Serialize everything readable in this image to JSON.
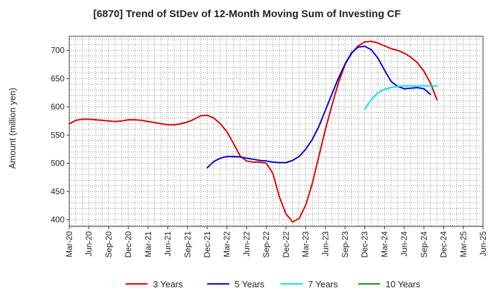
{
  "chart_data": {
    "type": "line",
    "title": "[6870]  Trend of StDev of 12-Month Moving Sum of Investing CF",
    "xlabel": "",
    "ylabel": "Amount (million yen)",
    "ylim": [
      388,
      725
    ],
    "yticks": [
      400,
      450,
      500,
      550,
      600,
      650,
      700
    ],
    "grid": true,
    "legend_position": "bottom",
    "x_tick_labels": [
      "Mar-20",
      "Jun-20",
      "Sep-20",
      "Dec-20",
      "Mar-21",
      "Jun-21",
      "Sep-21",
      "Dec-21",
      "Mar-22",
      "Jun-22",
      "Sep-22",
      "Dec-22",
      "Mar-23",
      "Jun-23",
      "Sep-23",
      "Dec-23",
      "Mar-24",
      "Jun-24",
      "Sep-24",
      "Dec-24",
      "Mar-25",
      "Jun-25"
    ],
    "x_start": "Mar-20",
    "series": [
      {
        "name": "3 Years",
        "color": "#dd0000",
        "points": [
          [
            "Mar-20",
            570
          ],
          [
            "Apr-20",
            576
          ],
          [
            "May-20",
            578
          ],
          [
            "Jun-20",
            578
          ],
          [
            "Jul-20",
            577
          ],
          [
            "Aug-20",
            576
          ],
          [
            "Sep-20",
            575
          ],
          [
            "Oct-20",
            574
          ],
          [
            "Nov-20",
            575
          ],
          [
            "Dec-20",
            577
          ],
          [
            "Jan-21",
            577
          ],
          [
            "Feb-21",
            576
          ],
          [
            "Mar-21",
            574
          ],
          [
            "Apr-21",
            572
          ],
          [
            "May-21",
            570
          ],
          [
            "Jun-21",
            568
          ],
          [
            "Jul-21",
            568
          ],
          [
            "Aug-21",
            570
          ],
          [
            "Sep-21",
            573
          ],
          [
            "Oct-21",
            578
          ],
          [
            "Nov-21",
            584
          ],
          [
            "Dec-21",
            585
          ],
          [
            "Jan-22",
            580
          ],
          [
            "Feb-22",
            570
          ],
          [
            "Mar-22",
            556
          ],
          [
            "Apr-22",
            535
          ],
          [
            "May-22",
            513
          ],
          [
            "Jun-22",
            504
          ],
          [
            "Jul-22",
            502
          ],
          [
            "Aug-22",
            502
          ],
          [
            "Sep-22",
            500
          ],
          [
            "Oct-22",
            482
          ],
          [
            "Nov-22",
            440
          ],
          [
            "Dec-22",
            410
          ],
          [
            "Jan-23",
            396
          ],
          [
            "Feb-23",
            402
          ],
          [
            "Mar-23",
            426
          ],
          [
            "Apr-23",
            464
          ],
          [
            "May-23",
            512
          ],
          [
            "Jun-23",
            560
          ],
          [
            "Jul-23",
            603
          ],
          [
            "Aug-23",
            643
          ],
          [
            "Sep-23",
            675
          ],
          [
            "Oct-23",
            695
          ],
          [
            "Nov-23",
            708
          ],
          [
            "Dec-23",
            715
          ],
          [
            "Jan-24",
            716
          ],
          [
            "Feb-24",
            713
          ],
          [
            "Mar-24",
            708
          ],
          [
            "Apr-24",
            703
          ],
          [
            "May-24",
            700
          ],
          [
            "Jun-24",
            695
          ],
          [
            "Jul-24",
            688
          ],
          [
            "Aug-24",
            678
          ],
          [
            "Sep-24",
            663
          ],
          [
            "Oct-24",
            642
          ],
          [
            "Nov-24",
            612
          ]
        ]
      },
      {
        "name": "5 Years",
        "color": "#0000cc",
        "points": [
          [
            "Dec-21",
            492
          ],
          [
            "Jan-22",
            503
          ],
          [
            "Feb-22",
            509
          ],
          [
            "Mar-22",
            512
          ],
          [
            "Apr-22",
            512
          ],
          [
            "May-22",
            511
          ],
          [
            "Jun-22",
            509
          ],
          [
            "Jul-22",
            507
          ],
          [
            "Aug-22",
            505
          ],
          [
            "Sep-22",
            504
          ],
          [
            "Oct-22",
            502
          ],
          [
            "Nov-22",
            501
          ],
          [
            "Dec-22",
            501
          ],
          [
            "Jan-23",
            505
          ],
          [
            "Feb-23",
            512
          ],
          [
            "Mar-23",
            525
          ],
          [
            "Apr-23",
            542
          ],
          [
            "May-23",
            565
          ],
          [
            "Jun-23",
            594
          ],
          [
            "Jul-23",
            623
          ],
          [
            "Aug-23",
            651
          ],
          [
            "Sep-23",
            676
          ],
          [
            "Oct-23",
            696
          ],
          [
            "Nov-23",
            706
          ],
          [
            "Dec-23",
            707
          ],
          [
            "Jan-24",
            701
          ],
          [
            "Feb-24",
            686
          ],
          [
            "Mar-24",
            665
          ],
          [
            "Apr-24",
            645
          ],
          [
            "May-24",
            636
          ],
          [
            "Jun-24",
            632
          ],
          [
            "Jul-24",
            633
          ],
          [
            "Aug-24",
            634
          ],
          [
            "Sep-24",
            632
          ],
          [
            "Oct-24",
            622
          ]
        ]
      },
      {
        "name": "7 Years",
        "color": "#00e5e5",
        "points": [
          [
            "Dec-23",
            596
          ],
          [
            "Jan-24",
            613
          ],
          [
            "Feb-24",
            625
          ],
          [
            "Mar-24",
            631
          ],
          [
            "Apr-24",
            634
          ],
          [
            "May-24",
            636
          ],
          [
            "Jun-24",
            637
          ],
          [
            "Jul-24",
            637
          ],
          [
            "Aug-24",
            637
          ],
          [
            "Sep-24",
            637
          ],
          [
            "Oct-24",
            637
          ],
          [
            "Nov-24",
            637
          ]
        ]
      },
      {
        "name": "10 Years",
        "color": "#228822",
        "points": []
      }
    ]
  }
}
